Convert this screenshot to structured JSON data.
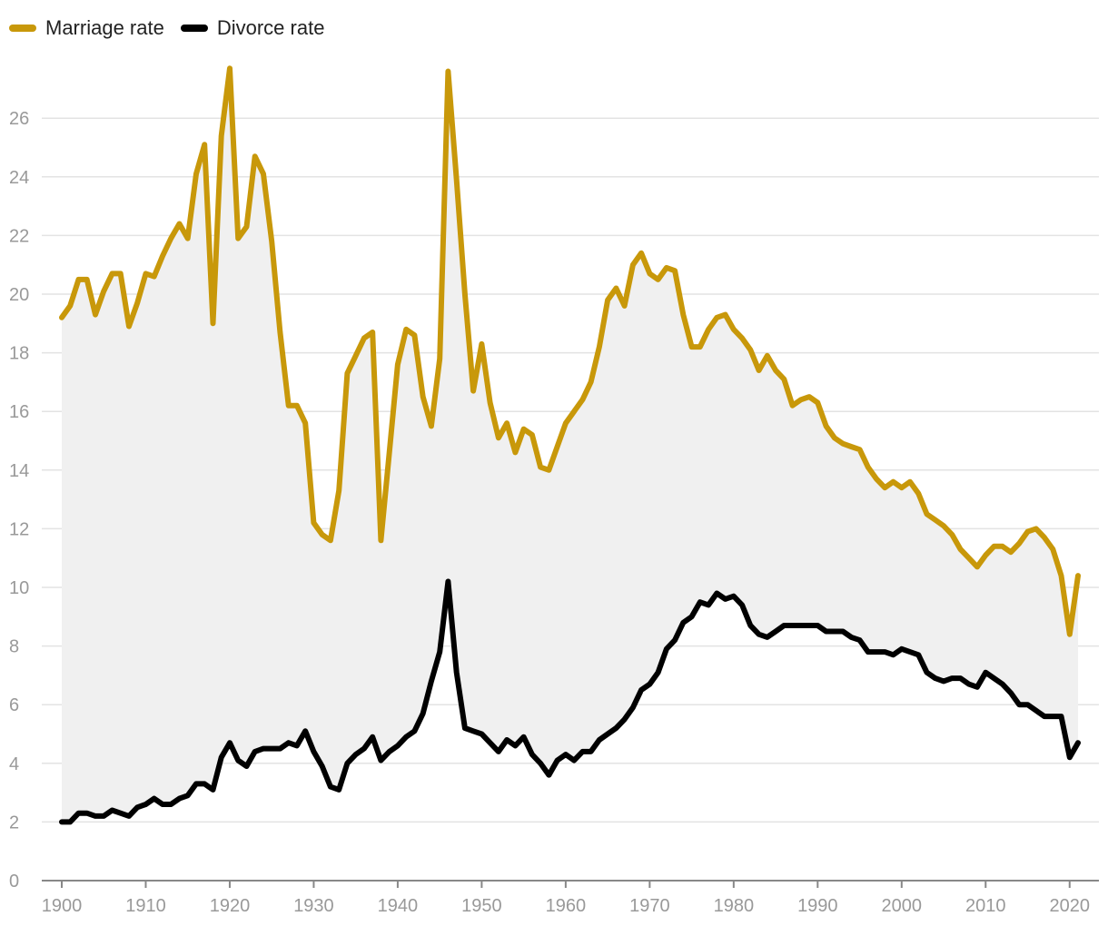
{
  "chart_data": {
    "type": "line",
    "title": "",
    "xlabel": "",
    "ylabel": "",
    "xlim": [
      1900,
      2021
    ],
    "ylim": [
      0,
      28
    ],
    "x_ticks": [
      "1900",
      "1910",
      "1920",
      "1930",
      "1940",
      "1950",
      "1960",
      "1970",
      "1980",
      "1990",
      "2000",
      "2010",
      "2020"
    ],
    "y_ticks": [
      "0",
      "2",
      "4",
      "6",
      "8",
      "10",
      "12",
      "14",
      "16",
      "18",
      "20",
      "22",
      "24",
      "26"
    ],
    "legend": {
      "position": "top-left"
    },
    "fill_between": {
      "color": "#f0f0f0"
    },
    "series": [
      {
        "name": "Marriage rate",
        "color": "#c8980a",
        "x": [
          1900,
          1901,
          1902,
          1903,
          1904,
          1905,
          1906,
          1907,
          1908,
          1909,
          1910,
          1911,
          1912,
          1913,
          1914,
          1915,
          1916,
          1917,
          1918,
          1919,
          1920,
          1921,
          1922,
          1923,
          1924,
          1925,
          1926,
          1927,
          1928,
          1929,
          1930,
          1931,
          1932,
          1933,
          1934,
          1935,
          1936,
          1937,
          1938,
          1939,
          1940,
          1941,
          1942,
          1943,
          1944,
          1945,
          1946,
          1947,
          1948,
          1949,
          1950,
          1951,
          1952,
          1953,
          1954,
          1955,
          1956,
          1957,
          1958,
          1959,
          1960,
          1961,
          1962,
          1963,
          1964,
          1965,
          1966,
          1967,
          1968,
          1969,
          1970,
          1971,
          1972,
          1973,
          1974,
          1975,
          1976,
          1977,
          1978,
          1979,
          1980,
          1981,
          1982,
          1983,
          1984,
          1985,
          1986,
          1987,
          1988,
          1989,
          1990,
          1991,
          1992,
          1993,
          1994,
          1995,
          1996,
          1997,
          1998,
          1999,
          2000,
          2001,
          2002,
          2003,
          2004,
          2005,
          2006,
          2007,
          2008,
          2009,
          2010,
          2011,
          2012,
          2013,
          2014,
          2015,
          2016,
          2017,
          2018,
          2019,
          2020,
          2021
        ],
        "values": [
          19.2,
          19.6,
          20.5,
          20.5,
          19.3,
          20.1,
          20.7,
          20.7,
          18.9,
          19.7,
          20.7,
          20.6,
          21.3,
          21.9,
          22.4,
          21.9,
          24.1,
          25.1,
          19.0,
          25.4,
          27.7,
          21.9,
          22.3,
          24.7,
          24.1,
          21.8,
          18.7,
          16.2,
          16.2,
          15.6,
          12.2,
          11.8,
          11.6,
          13.3,
          17.3,
          17.9,
          18.5,
          18.7,
          11.6,
          14.6,
          17.6,
          18.8,
          18.6,
          16.5,
          15.5,
          17.8,
          27.6,
          23.9,
          20.0,
          16.7,
          18.3,
          16.3,
          15.1,
          15.6,
          14.6,
          15.4,
          15.2,
          14.1,
          14.0,
          14.8,
          15.6,
          16.0,
          16.4,
          17.0,
          18.2,
          19.8,
          20.2,
          19.6,
          21.0,
          21.4,
          20.7,
          20.5,
          20.9,
          20.8,
          19.3,
          18.2,
          18.2,
          18.8,
          19.2,
          19.3,
          18.8,
          18.5,
          18.1,
          17.4,
          17.9,
          17.4,
          17.1,
          16.2,
          16.4,
          16.5,
          16.3,
          15.5,
          15.1,
          14.9,
          14.8,
          14.7,
          14.1,
          13.7,
          13.4,
          13.6,
          13.4,
          13.6,
          13.2,
          12.5,
          12.3,
          12.1,
          11.8,
          11.3,
          11.0,
          10.7,
          11.1,
          11.4,
          11.4,
          11.2,
          11.5,
          11.9,
          12.0,
          11.7,
          11.3,
          10.4,
          8.4,
          10.4
        ]
      },
      {
        "name": "Divorce rate",
        "color": "#000000",
        "x": [
          1900,
          1901,
          1902,
          1903,
          1904,
          1905,
          1906,
          1907,
          1908,
          1909,
          1910,
          1911,
          1912,
          1913,
          1914,
          1915,
          1916,
          1917,
          1918,
          1919,
          1920,
          1921,
          1922,
          1923,
          1924,
          1925,
          1926,
          1927,
          1928,
          1929,
          1930,
          1931,
          1932,
          1933,
          1934,
          1935,
          1936,
          1937,
          1938,
          1939,
          1940,
          1941,
          1942,
          1943,
          1944,
          1945,
          1946,
          1947,
          1948,
          1949,
          1950,
          1951,
          1952,
          1953,
          1954,
          1955,
          1956,
          1957,
          1958,
          1959,
          1960,
          1961,
          1962,
          1963,
          1964,
          1965,
          1966,
          1967,
          1968,
          1969,
          1970,
          1971,
          1972,
          1973,
          1974,
          1975,
          1976,
          1977,
          1978,
          1979,
          1980,
          1981,
          1982,
          1983,
          1984,
          1985,
          1986,
          1987,
          1988,
          1989,
          1990,
          1991,
          1992,
          1993,
          1994,
          1995,
          1996,
          1997,
          1998,
          1999,
          2000,
          2001,
          2002,
          2003,
          2004,
          2005,
          2006,
          2007,
          2008,
          2009,
          2010,
          2011,
          2012,
          2013,
          2014,
          2015,
          2016,
          2017,
          2018,
          2019,
          2020,
          2021
        ],
        "values": [
          2.0,
          2.0,
          2.3,
          2.3,
          2.2,
          2.2,
          2.4,
          2.3,
          2.2,
          2.5,
          2.6,
          2.8,
          2.6,
          2.6,
          2.8,
          2.9,
          3.3,
          3.3,
          3.1,
          4.2,
          4.7,
          4.1,
          3.9,
          4.4,
          4.5,
          4.5,
          4.5,
          4.7,
          4.6,
          5.1,
          4.4,
          3.9,
          3.2,
          3.1,
          4.0,
          4.3,
          4.5,
          4.9,
          4.1,
          4.4,
          4.6,
          4.9,
          5.1,
          5.7,
          6.8,
          7.8,
          10.2,
          7.1,
          5.2,
          5.1,
          5.0,
          4.7,
          4.4,
          4.8,
          4.6,
          4.9,
          4.3,
          4.0,
          3.6,
          4.1,
          4.3,
          4.1,
          4.4,
          4.4,
          4.8,
          5.0,
          5.2,
          5.5,
          5.9,
          6.5,
          6.7,
          7.1,
          7.9,
          8.2,
          8.8,
          9.0,
          9.5,
          9.4,
          9.8,
          9.6,
          9.7,
          9.4,
          8.7,
          8.4,
          8.3,
          8.5,
          8.7,
          8.7,
          8.7,
          8.7,
          8.7,
          8.5,
          8.5,
          8.5,
          8.3,
          8.2,
          7.8,
          7.8,
          7.8,
          7.7,
          7.9,
          7.8,
          7.7,
          7.1,
          6.9,
          6.8,
          6.9,
          6.9,
          6.7,
          6.6,
          7.1,
          6.9,
          6.7,
          6.4,
          6.0,
          6.0,
          5.8,
          5.6,
          5.6,
          5.6,
          4.2,
          4.7
        ]
      }
    ]
  }
}
